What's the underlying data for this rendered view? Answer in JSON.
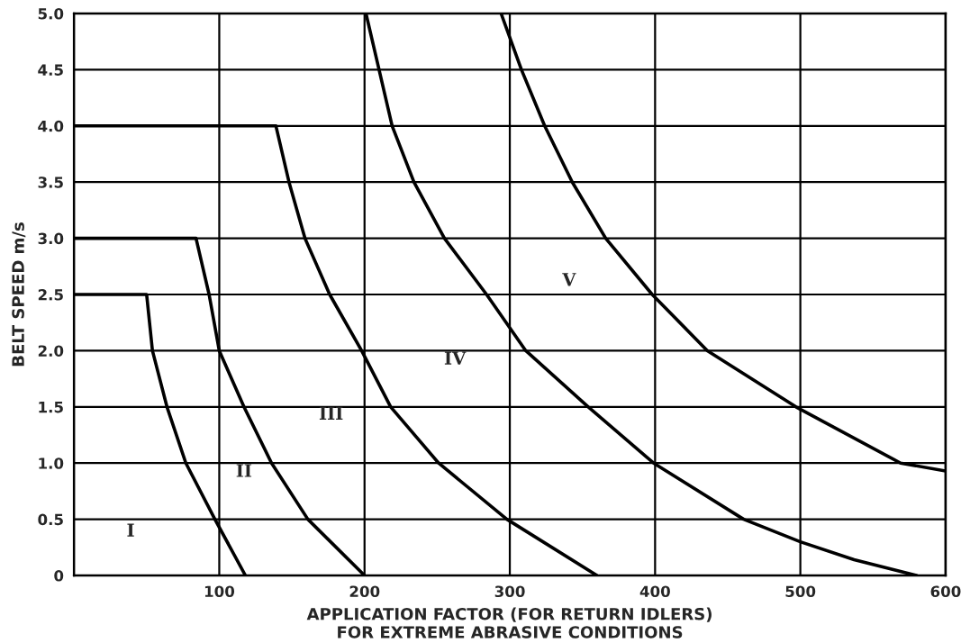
{
  "chart_data": {
    "type": "line",
    "xlabel": "APPLICATION FACTOR (FOR RETURN IDLERS)\nFOR EXTREME ABRASIVE CONDITIONS",
    "ylabel": "BELT SPEED m/s",
    "xlim": [
      0,
      600
    ],
    "xticks": [
      100,
      200,
      300,
      400,
      500,
      600
    ],
    "ylim": [
      0,
      5
    ],
    "yticks": [
      0,
      0.5,
      {
        "value": 1,
        "label": "1.0"
      },
      1.5,
      {
        "value": 2,
        "label": "2.0"
      },
      2.5,
      {
        "value": 3,
        "label": "3.0"
      },
      3.5,
      {
        "value": 4,
        "label": "4.0"
      },
      4.5,
      {
        "value": 5,
        "label": "5.0"
      }
    ],
    "grid": true,
    "marker": "none",
    "line_style": "solid",
    "series": [
      {
        "color": "#000000",
        "x": [
          0,
          50,
          54,
          64,
          77,
          97,
          118
        ],
        "values": [
          2.5,
          2.5,
          2.0,
          1.5,
          1.0,
          0.5,
          0
        ]
      },
      {
        "color": "#000000",
        "x": [
          0,
          84,
          93,
          100,
          117,
          136,
          161,
          200
        ],
        "values": [
          3.0,
          3.0,
          2.5,
          2.0,
          1.5,
          1.0,
          0.5,
          0
        ]
      },
      {
        "color": "#000000",
        "x": [
          0,
          139,
          148,
          159,
          176,
          198,
          218,
          251,
          298,
          360
        ],
        "values": [
          4.0,
          4.0,
          3.5,
          3.0,
          2.5,
          2.0,
          1.5,
          1.0,
          0.5,
          0
        ]
      },
      {
        "color": "#000000",
        "x": [
          201,
          210,
          219,
          234,
          255,
          284,
          311,
          354,
          399,
          461,
          500,
          537,
          580
        ],
        "values": [
          5.0,
          4.5,
          4.0,
          3.5,
          3.0,
          2.5,
          2.0,
          1.5,
          1.0,
          0.5,
          0.3,
          0.14,
          0
        ]
      },
      {
        "color": "#000000",
        "x": [
          294,
          308,
          324,
          343,
          366,
          398,
          436,
          497,
          569,
          600
        ],
        "values": [
          5.0,
          4.5,
          4.0,
          3.5,
          3.0,
          2.5,
          2.0,
          1.5,
          1.0,
          0.93
        ]
      }
    ],
    "annotations": [
      "I",
      "II",
      "III",
      "IV",
      "V"
    ]
  }
}
